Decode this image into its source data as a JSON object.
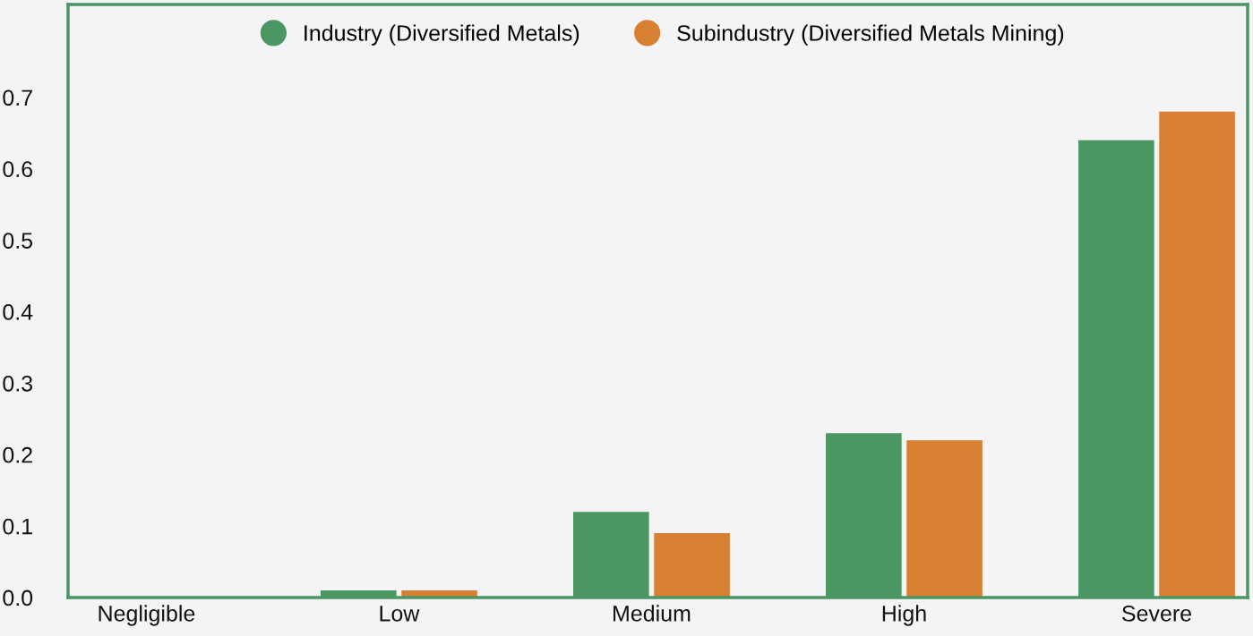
{
  "chart_data": {
    "type": "bar",
    "categories": [
      "Negligible",
      "Low",
      "Medium",
      "High",
      "Severe"
    ],
    "series": [
      {
        "name": "Industry (Diversified Metals)",
        "color": "#4b9663",
        "values": [
          0,
          0.01,
          0.12,
          0.23,
          0.64
        ]
      },
      {
        "name": "Subindustry (Diversified Metals Mining)",
        "color": "#d88032",
        "values": [
          0,
          0.01,
          0.09,
          0.22,
          0.68
        ]
      }
    ],
    "ylim": [
      0,
      0.83
    ],
    "yticks": [
      {
        "value": 0,
        "label": "0.0"
      },
      0.1,
      0.2,
      0.3,
      0.4,
      0.5,
      0.6,
      0.7
    ],
    "grid": false,
    "legend": "top"
  }
}
